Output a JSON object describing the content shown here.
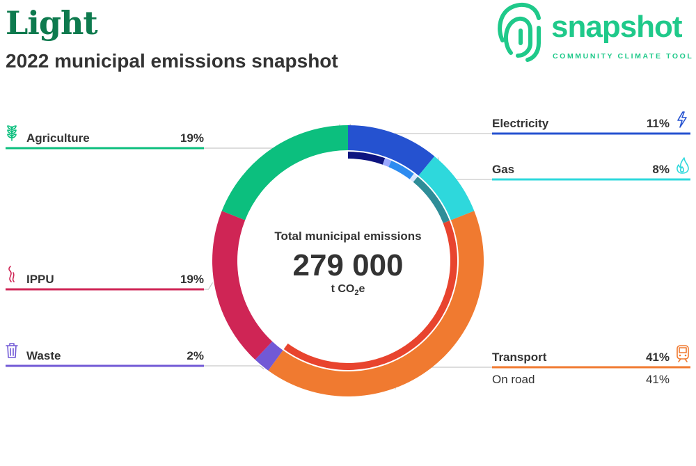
{
  "header": {
    "title": "Light",
    "subtitle": "2022 municipal emissions snapshot"
  },
  "logo": {
    "word": "snapshot",
    "tagline": "COMMUNITY CLIMATE TOOL",
    "color": "#1fc98a"
  },
  "chart_data": {
    "type": "pie",
    "center": {
      "title": "Total municipal emissions",
      "value": "279 000",
      "unit_prefix": "t CO",
      "unit_sub": "2",
      "unit_suffix": "e"
    },
    "categories": [
      {
        "name": "Electricity",
        "pct_label": "11%",
        "value": 11,
        "color": "#2552d0",
        "icon": "lightning-icon",
        "side": "right"
      },
      {
        "name": "Gas",
        "pct_label": "8%",
        "value": 8,
        "color": "#2ed8dc",
        "icon": "flame-icon",
        "side": "right"
      },
      {
        "name": "Transport",
        "pct_label": "41%",
        "value": 41,
        "color": "#f07a30",
        "icon": "train-icon",
        "side": "right",
        "subcategories": [
          {
            "name": "On road",
            "pct_label": "41%",
            "value": 41,
            "color": "#e8442e"
          }
        ]
      },
      {
        "name": "Waste",
        "pct_label": "2%",
        "value": 2,
        "color": "#7159d6",
        "icon": "trash-icon",
        "side": "left"
      },
      {
        "name": "IPPU",
        "pct_label": "19%",
        "value": 19,
        "color": "#cf2555",
        "icon": "smoke-icon",
        "side": "left"
      },
      {
        "name": "Agriculture",
        "pct_label": "19%",
        "value": 19,
        "color": "#0cbf7e",
        "icon": "wheat-icon",
        "side": "left"
      }
    ],
    "inner_details": [
      {
        "parent": "Electricity",
        "value": 5.5,
        "color": "#0d1480"
      },
      {
        "parent": "Electricity",
        "value": 1.0,
        "color": "#9aa9ff"
      },
      {
        "parent": "Electricity",
        "value": 3.8,
        "color": "#2e8cf0"
      },
      {
        "parent": "Electricity",
        "value": 0.7,
        "color": "#d8e6ff"
      },
      {
        "parent": "Gas",
        "value": 8,
        "color": "#2f8d98"
      },
      {
        "parent": "Transport",
        "value": 41,
        "color": "#e8442e"
      }
    ]
  }
}
